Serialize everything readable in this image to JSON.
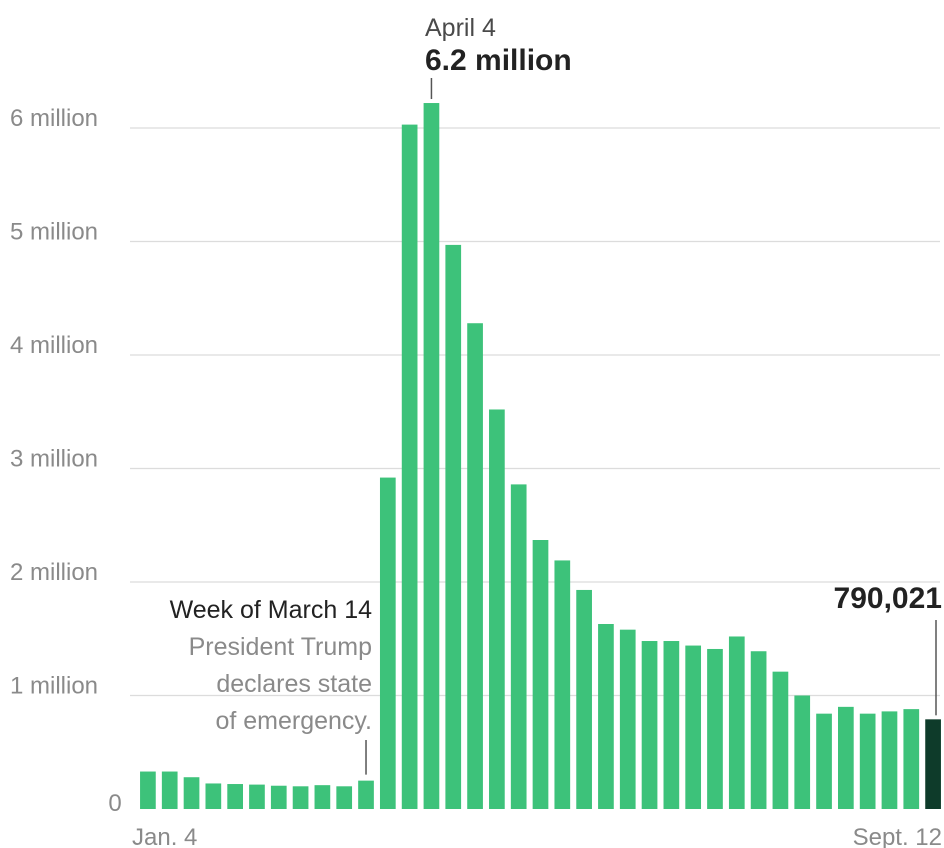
{
  "chart_data": {
    "type": "bar",
    "title": "",
    "xlabel": "",
    "ylabel": "",
    "ylim": [
      0,
      6500000
    ],
    "grid": true,
    "y_ticks": [
      {
        "value": 0,
        "label": "0"
      },
      {
        "value": 1000000,
        "label": "1 million"
      },
      {
        "value": 2000000,
        "label": "2 million"
      },
      {
        "value": 3000000,
        "label": "3 million"
      },
      {
        "value": 4000000,
        "label": "4 million"
      },
      {
        "value": 5000000,
        "label": "5 million"
      },
      {
        "value": 6000000,
        "label": "6 million"
      }
    ],
    "x_tick_labels": {
      "first": "Jan. 4",
      "last": "Sept. 12"
    },
    "values": [
      330000,
      330000,
      280000,
      225000,
      220000,
      215000,
      205000,
      200000,
      210000,
      200000,
      250000,
      2920000,
      6030000,
      6220000,
      4970000,
      4280000,
      3520000,
      2860000,
      2370000,
      2190000,
      1930000,
      1630000,
      1580000,
      1480000,
      1480000,
      1440000,
      1410000,
      1520000,
      1390000,
      1210000,
      1000000,
      840000,
      900000,
      840000,
      860000,
      880000,
      790021
    ],
    "colors": {
      "bar": "#3dc27a",
      "highlight": "#0e3b2a"
    },
    "highlight_index": 36,
    "annotations": {
      "peak": {
        "index": 13,
        "date": "April 4",
        "value_label": "6.2 million"
      },
      "march": {
        "index": 10,
        "heading": "Week of March 14",
        "lines": [
          "President Trump",
          "declares state",
          "of emergency."
        ]
      },
      "latest": {
        "index": 36,
        "value_label": "790,021"
      }
    }
  }
}
